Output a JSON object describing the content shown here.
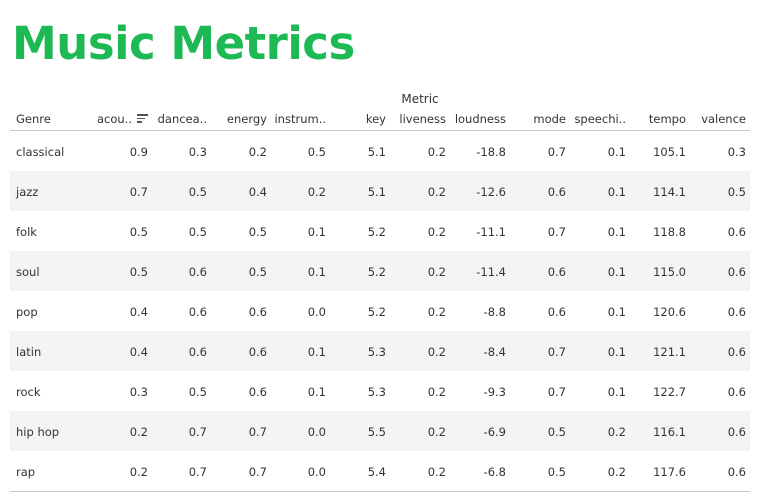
{
  "title": "Music Metrics",
  "colors": {
    "title": "#1db954",
    "alt_row": "#f4f4f4",
    "text": "#333333"
  },
  "chart_data": {
    "type": "table",
    "column_group_label": "Metric",
    "row_header_label": "Genre",
    "sorted_column": "acou..",
    "sort_icon": "sort-descending-icon",
    "columns": [
      "acou..",
      "dancea..",
      "energy",
      "instrum..",
      "key",
      "liveness",
      "loudness",
      "mode",
      "speechi..",
      "tempo",
      "valence"
    ],
    "rows": [
      {
        "genre": "classical",
        "values": [
          "0.9",
          "0.3",
          "0.2",
          "0.5",
          "5.1",
          "0.2",
          "-18.8",
          "0.7",
          "0.1",
          "105.1",
          "0.3"
        ]
      },
      {
        "genre": "jazz",
        "values": [
          "0.7",
          "0.5",
          "0.4",
          "0.2",
          "5.1",
          "0.2",
          "-12.6",
          "0.6",
          "0.1",
          "114.1",
          "0.5"
        ]
      },
      {
        "genre": "folk",
        "values": [
          "0.5",
          "0.5",
          "0.5",
          "0.1",
          "5.2",
          "0.2",
          "-11.1",
          "0.7",
          "0.1",
          "118.8",
          "0.6"
        ]
      },
      {
        "genre": "soul",
        "values": [
          "0.5",
          "0.6",
          "0.5",
          "0.1",
          "5.2",
          "0.2",
          "-11.4",
          "0.6",
          "0.1",
          "115.0",
          "0.6"
        ]
      },
      {
        "genre": "pop",
        "values": [
          "0.4",
          "0.6",
          "0.6",
          "0.0",
          "5.2",
          "0.2",
          "-8.8",
          "0.6",
          "0.1",
          "120.6",
          "0.6"
        ]
      },
      {
        "genre": "latin",
        "values": [
          "0.4",
          "0.6",
          "0.6",
          "0.1",
          "5.3",
          "0.2",
          "-8.4",
          "0.7",
          "0.1",
          "121.1",
          "0.6"
        ]
      },
      {
        "genre": "rock",
        "values": [
          "0.3",
          "0.5",
          "0.6",
          "0.1",
          "5.3",
          "0.2",
          "-9.3",
          "0.7",
          "0.1",
          "122.7",
          "0.6"
        ]
      },
      {
        "genre": "hip hop",
        "values": [
          "0.2",
          "0.7",
          "0.7",
          "0.0",
          "5.5",
          "0.2",
          "-6.9",
          "0.5",
          "0.2",
          "116.1",
          "0.6"
        ]
      },
      {
        "genre": "rap",
        "values": [
          "0.2",
          "0.7",
          "0.7",
          "0.0",
          "5.4",
          "0.2",
          "-6.8",
          "0.5",
          "0.2",
          "117.6",
          "0.6"
        ]
      }
    ]
  }
}
